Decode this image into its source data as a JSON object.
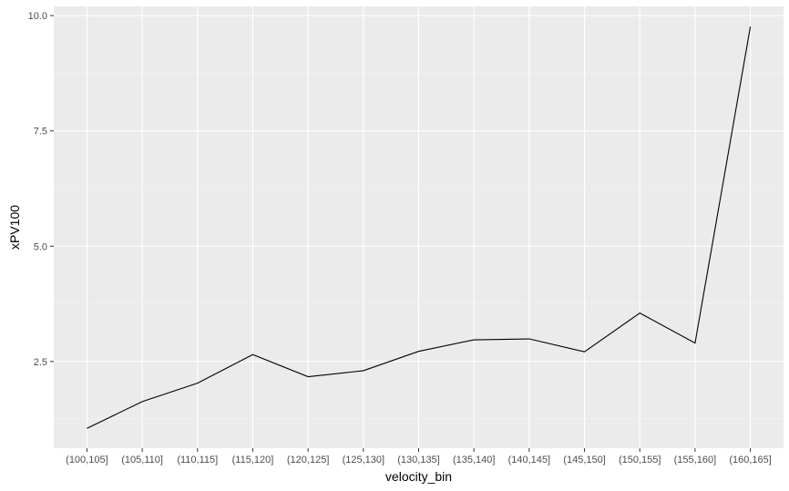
{
  "chart_data": {
    "type": "line",
    "categories": [
      "(100,105]",
      "(105,110]",
      "(110,115]",
      "(115,120]",
      "(120,125]",
      "(125,130]",
      "(130,135]",
      "(135,140]",
      "(140,145]",
      "(145,150]",
      "(150,155]",
      "(155,160]",
      "(160,165]"
    ],
    "values": [
      1.05,
      1.63,
      2.03,
      2.65,
      2.17,
      2.3,
      2.72,
      2.97,
      2.99,
      2.71,
      3.55,
      2.9,
      9.76
    ],
    "xlabel": "velocity_bin",
    "ylabel": "xPV100",
    "yticks": [
      2.5,
      5.0,
      7.5,
      10.0
    ],
    "ytick_labels": [
      "2.5",
      "5.0",
      "7.5",
      "10.0"
    ],
    "ylim": [
      0.62,
      10.2
    ],
    "grid": true,
    "colors": {
      "panel_background": "#ebebeb",
      "grid_major": "#ffffff",
      "grid_minor": "#f5f5f5",
      "line": "#000000",
      "tick_text": "#4d4d4d",
      "tick_mark": "#333333"
    }
  }
}
